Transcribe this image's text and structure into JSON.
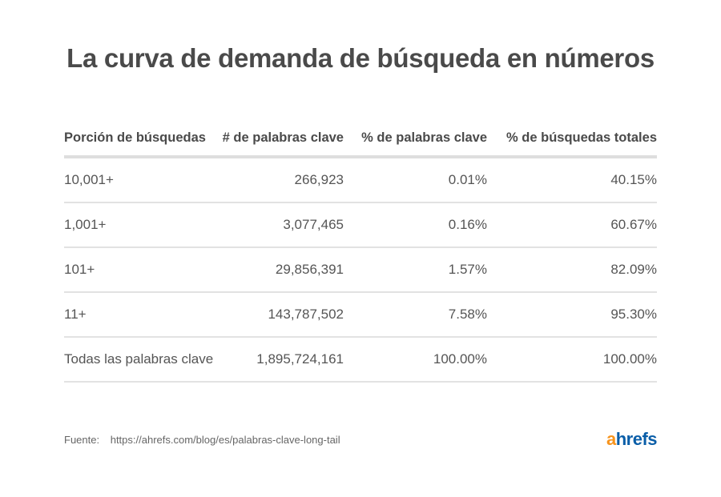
{
  "title": "La curva de demanda de búsqueda en números",
  "chart_data": {
    "type": "table",
    "title": "La curva de demanda de búsqueda en números",
    "columns": [
      "Porción de búsquedas",
      "# de palabras clave",
      "% de palabras clave",
      "% de búsquedas totales"
    ],
    "rows": [
      [
        "10,001+",
        "266,923",
        "0.01%",
        "40.15%"
      ],
      [
        "1,001+",
        "3,077,465",
        "0.16%",
        "60.67%"
      ],
      [
        "101+",
        "29,856,391",
        "1.57%",
        "82.09%"
      ],
      [
        "11+",
        "143,787,502",
        "7.58%",
        "95.30%"
      ],
      [
        "Todas las palabras clave",
        "1,895,724,161",
        "100.00%",
        "100.00%"
      ]
    ]
  },
  "source": {
    "label": "Fuente:",
    "url": "https://ahrefs.com/blog/es/palabras-clave-long-tail"
  },
  "logo": {
    "text": "ahrefs",
    "first": "a",
    "rest": "hrefs",
    "colors": {
      "a": "#f7941d",
      "rest": "#0a5ea8"
    }
  }
}
